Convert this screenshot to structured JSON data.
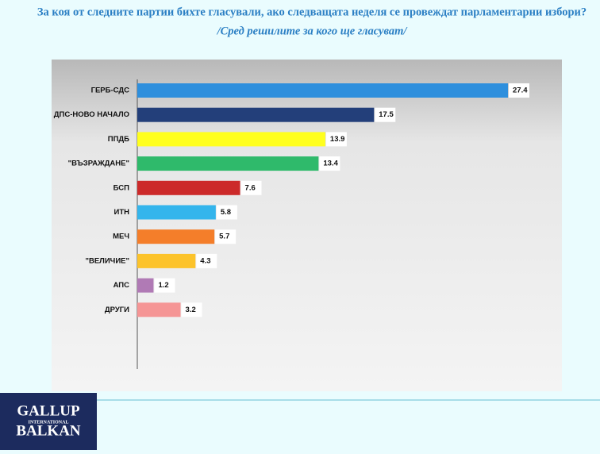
{
  "chart_data": {
    "type": "bar",
    "orientation": "horizontal",
    "title": "За коя от следните партии бихте  гласували,  ако следващата неделя се провеждат парламентарни избори?",
    "subtitle": "/Сред решилите за кого ще гласуват/",
    "categories": [
      "ГЕРБ-СДС",
      "ДПС-НОВО НАЧАЛО",
      "ППДБ",
      "\"ВЪЗРАЖДАНЕ\"",
      "БСП",
      "ИТН",
      "МЕЧ",
      "\"ВЕЛИЧИЕ\"",
      "АПС",
      "ДРУГИ"
    ],
    "values": [
      27.4,
      17.5,
      13.9,
      13.4,
      7.6,
      5.8,
      5.7,
      4.3,
      1.2,
      3.2
    ],
    "colors": [
      "#2e8fdd",
      "#233f7a",
      "#ffff1e",
      "#2fba6b",
      "#cc2a2a",
      "#34b5ec",
      "#f47e2a",
      "#fcc32b",
      "#b07ab5",
      "#f59595"
    ]
  },
  "logo": {
    "top": "GALLUP",
    "middle": "INTERNATIONAL",
    "bottom": "BALKAN"
  }
}
